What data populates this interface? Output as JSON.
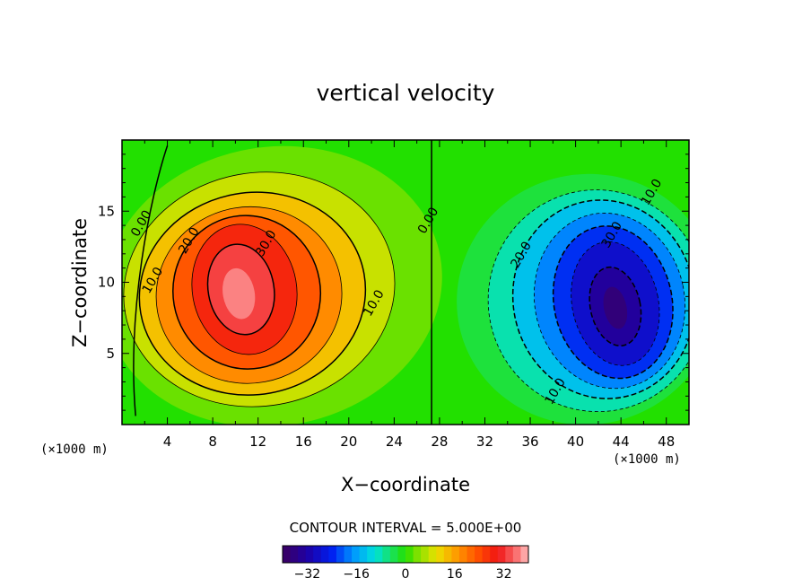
{
  "chart_data": {
    "type": "heatmap",
    "subtype": "filled-contour",
    "title": "vertical velocity",
    "xlabel": "X−coordinate",
    "ylabel": "Z−coordinate",
    "x_unit": "(×1000 m)",
    "z_unit": "(×1000 m)",
    "xlim": [
      0,
      50
    ],
    "zlim": [
      0,
      20
    ],
    "x_ticks": [
      "4",
      "8",
      "12",
      "16",
      "20",
      "24",
      "28",
      "32",
      "36",
      "40",
      "44",
      "48"
    ],
    "z_ticks": [
      "5",
      "10",
      "15"
    ],
    "contour_interval_text": "CONTOUR INTERVAL = 5.000E+00",
    "contour_interval": 5,
    "fields": [
      {
        "name": "updraft",
        "center_x": 10.5,
        "center_z": 9.5,
        "peak": 38
      },
      {
        "name": "downdraft",
        "center_x": 43.5,
        "center_z": 8.5,
        "peak": -37
      }
    ],
    "contour_labels": [
      {
        "text": "0.00",
        "x": 2.0,
        "z": 14.0
      },
      {
        "text": "10.0",
        "x": 3.0,
        "z": 10.0
      },
      {
        "text": "20.0",
        "x": 6.2,
        "z": 12.8
      },
      {
        "text": "30.0",
        "x": 13.0,
        "z": 12.6
      },
      {
        "text": "10.0",
        "x": 22.5,
        "z": 8.4
      },
      {
        "text": "0.00",
        "x": 27.3,
        "z": 14.2
      },
      {
        "text": "10.0",
        "x": 47.0,
        "z": 16.2
      },
      {
        "text": "20.0",
        "x": 35.5,
        "z": 11.8
      },
      {
        "text": "30.0",
        "x": 43.5,
        "z": 13.2
      },
      {
        "text": "10.0",
        "x": 38.5,
        "z": 2.2
      }
    ],
    "colorbar": {
      "range": [
        -40,
        40
      ],
      "ticks": [
        "−32",
        "−16",
        "0",
        "16",
        "32"
      ],
      "tick_values": [
        -32,
        -16,
        0,
        16,
        32
      ]
    }
  },
  "colors": {
    "background": "#ffffff",
    "axis": "#000000",
    "zero": "#22e000"
  }
}
